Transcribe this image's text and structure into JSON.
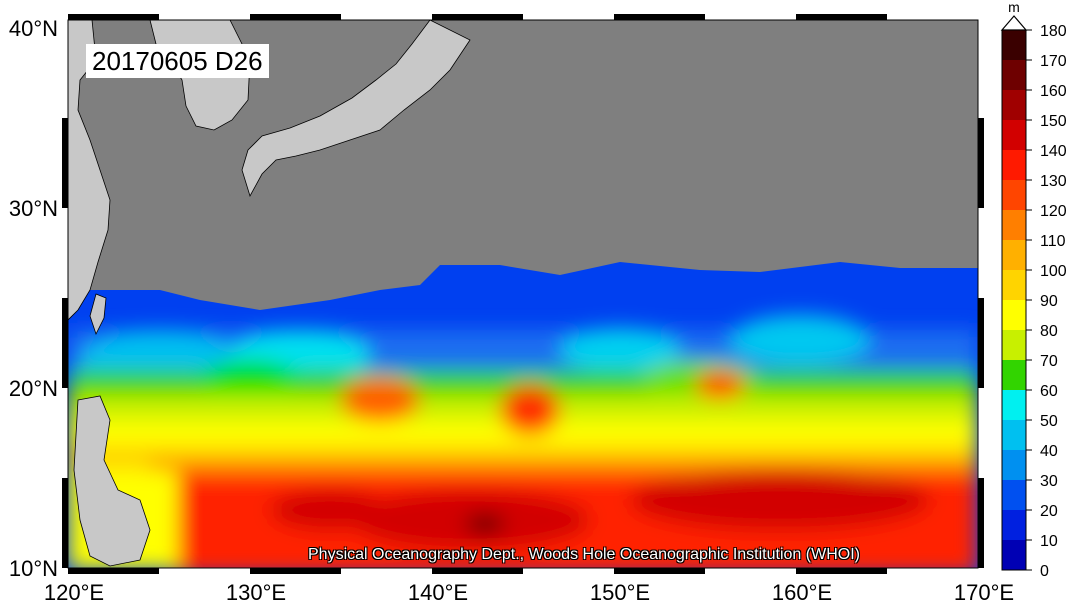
{
  "map": {
    "date_label": "20170605 D26",
    "credit": "Physical Oceanography Dept., Woods Hole Oceanographic Institution (WHOI)",
    "lat_ticks": [
      "40°N",
      "30°N",
      "20°N",
      "10°N"
    ],
    "lon_ticks": [
      "120°E",
      "130°E",
      "140°E",
      "150°E",
      "160°E",
      "170°E"
    ],
    "extent": {
      "lon": [
        120,
        170
      ],
      "lat": [
        10,
        40
      ]
    },
    "land_color": "#c8c8c8",
    "nodata_color": "#7f7f7f"
  },
  "colorbar": {
    "unit": "m",
    "ticks": [
      "180",
      "170",
      "160",
      "150",
      "140",
      "130",
      "120",
      "110",
      "100",
      "90",
      "80",
      "70",
      "60",
      "50",
      "40",
      "30",
      "20",
      "10",
      "0"
    ],
    "colors": [
      "#3a0000",
      "#6e0000",
      "#a00000",
      "#d20000",
      "#ff1a00",
      "#ff4500",
      "#ff7f00",
      "#ffb000",
      "#ffd400",
      "#ffff00",
      "#c8f000",
      "#32d400",
      "#00f0f0",
      "#00c0f0",
      "#0090f0",
      "#0050f0",
      "#0020e0",
      "#0000b4",
      "#000080"
    ]
  }
}
